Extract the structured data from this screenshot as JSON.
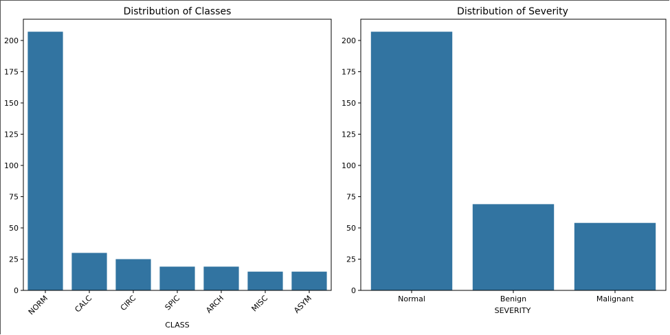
{
  "chart_data": [
    {
      "type": "bar",
      "title": "Distribution of Classes",
      "xlabel": "CLASS",
      "ylabel": "",
      "categories": [
        "NORM",
        "CALC",
        "CIRC",
        "SPIC",
        "ARCH",
        "MISC",
        "ASYM"
      ],
      "values": [
        207,
        30,
        25,
        19,
        19,
        15,
        15
      ],
      "ylim": [
        0,
        217
      ],
      "yticks": [
        0,
        25,
        50,
        75,
        100,
        125,
        150,
        175,
        200
      ],
      "xtick_rotation": 45,
      "bar_color": "#3274a1",
      "grid": false
    },
    {
      "type": "bar",
      "title": "Distribution of Severity",
      "xlabel": "SEVERITY",
      "ylabel": "",
      "categories": [
        "Normal",
        "Benign",
        "Malignant"
      ],
      "values": [
        207,
        69,
        54
      ],
      "ylim": [
        0,
        217
      ],
      "yticks": [
        0,
        25,
        50,
        75,
        100,
        125,
        150,
        175,
        200
      ],
      "xtick_rotation": 0,
      "bar_color": "#3274a1",
      "grid": false
    }
  ]
}
